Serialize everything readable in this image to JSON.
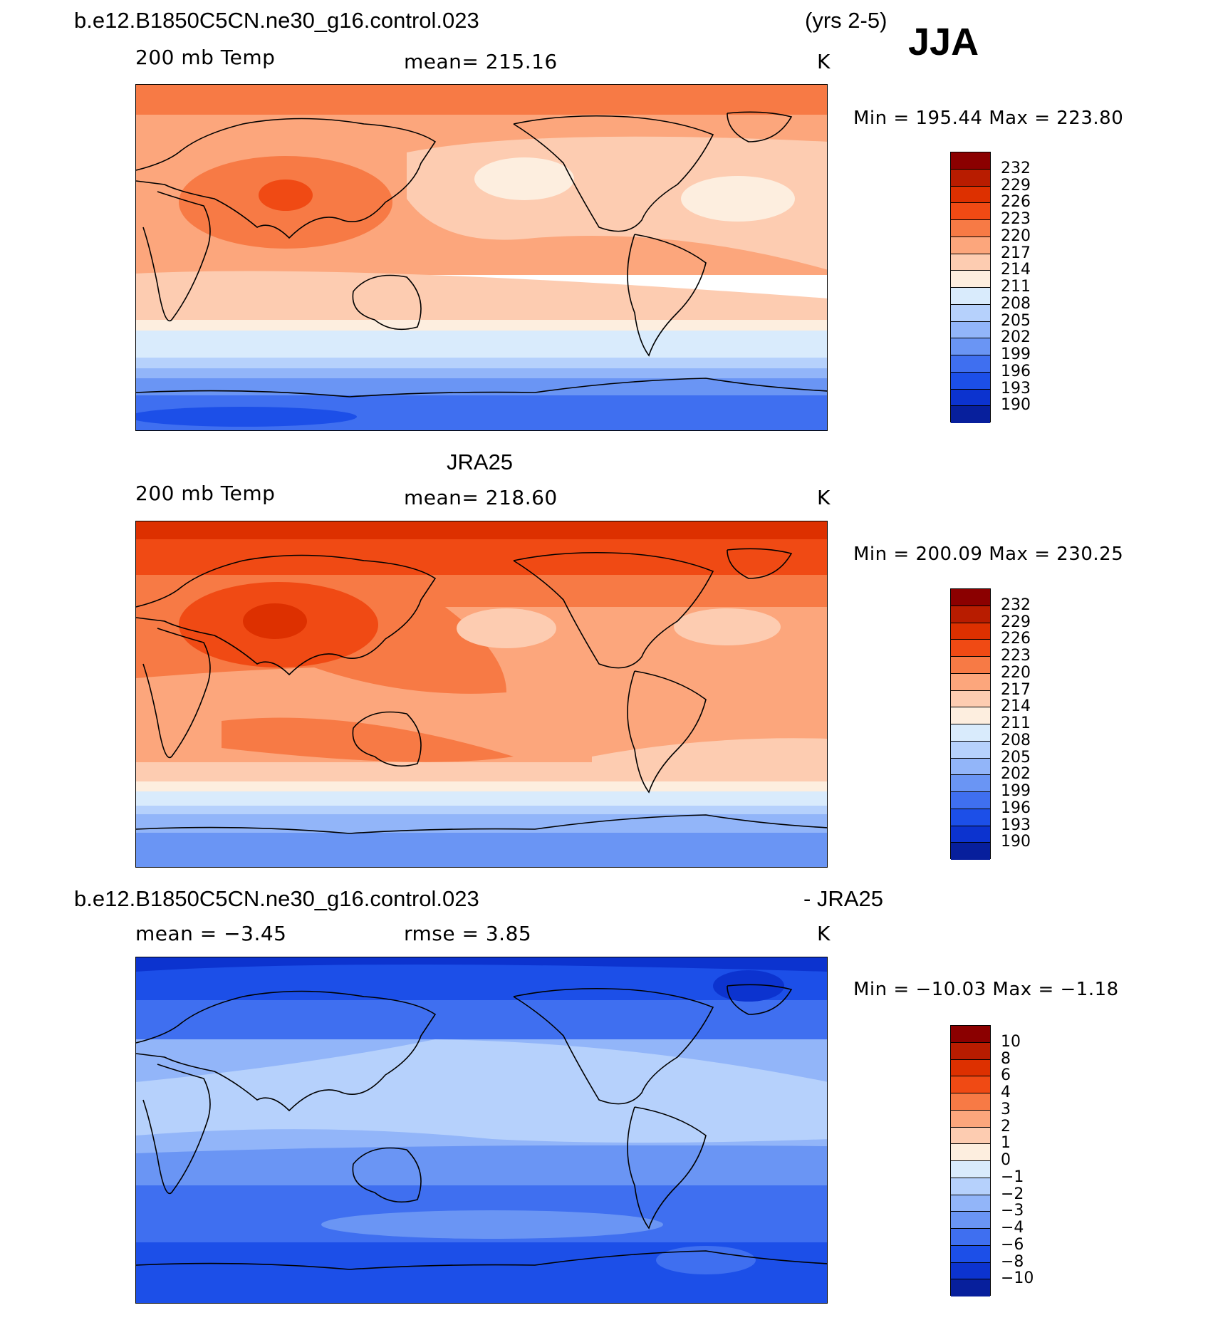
{
  "figure": {
    "case_name": "b.e12.B1850C5CN.ne30_g16.control.023",
    "years": "(yrs 2-5)",
    "season": "JJA"
  },
  "panels": [
    {
      "title": "b.e12.B1850C5CN.ne30_g16.control.023",
      "left_label": "200 mb Temp",
      "center_label": "mean= 215.16",
      "units": "K",
      "minmax": "Min = 195.44 Max = 223.80"
    },
    {
      "title": "JRA25",
      "left_label": "200 mb Temp",
      "center_label": "mean= 218.60",
      "units": "K",
      "minmax": "Min = 200.09 Max = 230.25"
    },
    {
      "title": "b.e12.B1850C5CN.ne30_g16.control.023",
      "title_right": "- JRA25",
      "left_label": "mean = −3.45",
      "center_label": "rmse = 3.85",
      "units": "K",
      "minmax": "Min = −10.03 Max = −1.18"
    }
  ],
  "colorbars": {
    "abs_levels": [
      "232",
      "229",
      "226",
      "223",
      "220",
      "217",
      "214",
      "211",
      "208",
      "205",
      "202",
      "199",
      "196",
      "193",
      "190"
    ],
    "diff_levels": [
      "10",
      "8",
      "6",
      "4",
      "3",
      "2",
      "1",
      "0",
      "−1",
      "−2",
      "−3",
      "−4",
      "−6",
      "−8",
      "−10"
    ],
    "colors": [
      "#8b0000",
      "#b81c00",
      "#dd3000",
      "#f04a14",
      "#f77a45",
      "#fca67c",
      "#fdccb1",
      "#fdeedf",
      "#d9ebfc",
      "#b6d1fc",
      "#92b5f9",
      "#6a95f4",
      "#3f6ff0",
      "#1c4fe8",
      "#0c33cf",
      "#071f9c"
    ]
  },
  "chart_data": {
    "type": "heatmap",
    "projection": "cylindrical equidistant, centered on Pacific",
    "panels": [
      {
        "name": "model",
        "variable": "200 mb Temp",
        "units": "K",
        "mean": 215.16,
        "min": 195.44,
        "max": 223.8,
        "contour_levels": [
          190,
          193,
          196,
          199,
          202,
          205,
          208,
          211,
          214,
          217,
          220,
          223,
          226,
          229,
          232
        ]
      },
      {
        "name": "JRA25",
        "variable": "200 mb Temp",
        "units": "K",
        "mean": 218.6,
        "min": 200.09,
        "max": 230.25,
        "contour_levels": [
          190,
          193,
          196,
          199,
          202,
          205,
          208,
          211,
          214,
          217,
          220,
          223,
          226,
          229,
          232
        ]
      },
      {
        "name": "model - JRA25",
        "units": "K",
        "mean": -3.45,
        "rmse": 3.85,
        "min": -10.03,
        "max": -1.18,
        "contour_levels": [
          -10,
          -8,
          -6,
          -4,
          -3,
          -2,
          -1,
          0,
          1,
          2,
          3,
          4,
          6,
          8,
          10
        ]
      }
    ]
  }
}
